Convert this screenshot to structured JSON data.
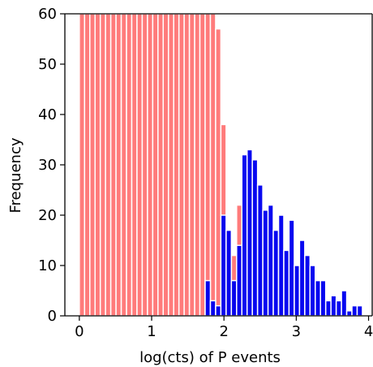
{
  "chart_data": {
    "type": "bar",
    "xlabel": "log(cts) of P events",
    "ylabel": "Frequency",
    "xlim": [
      -0.2,
      4.05
    ],
    "ylim": [
      0,
      60
    ],
    "xticks": [
      0,
      1,
      2,
      3,
      4
    ],
    "yticks": [
      0,
      10,
      20,
      30,
      40,
      50,
      60
    ],
    "legend": "none",
    "grid": false,
    "series": [
      {
        "color": "#ff7b7b",
        "bin_width": 0.0725,
        "bins": [
          {
            "x0": 0.0,
            "value": 60
          },
          {
            "x0": 0.0725,
            "value": 60
          },
          {
            "x0": 0.145,
            "value": 60
          },
          {
            "x0": 0.2175,
            "value": 60
          },
          {
            "x0": 0.29,
            "value": 60
          },
          {
            "x0": 0.3625,
            "value": 60
          },
          {
            "x0": 0.435,
            "value": 60
          },
          {
            "x0": 0.5075,
            "value": 60
          },
          {
            "x0": 0.58,
            "value": 60
          },
          {
            "x0": 0.6525,
            "value": 60
          },
          {
            "x0": 0.725,
            "value": 60
          },
          {
            "x0": 0.7975,
            "value": 60
          },
          {
            "x0": 0.87,
            "value": 60
          },
          {
            "x0": 0.9425,
            "value": 60
          },
          {
            "x0": 1.015,
            "value": 60
          },
          {
            "x0": 1.0875,
            "value": 60
          },
          {
            "x0": 1.16,
            "value": 60
          },
          {
            "x0": 1.2325,
            "value": 60
          },
          {
            "x0": 1.305,
            "value": 60
          },
          {
            "x0": 1.3775,
            "value": 60
          },
          {
            "x0": 1.45,
            "value": 60
          },
          {
            "x0": 1.5225,
            "value": 60
          },
          {
            "x0": 1.595,
            "value": 60
          },
          {
            "x0": 1.6675,
            "value": 60
          },
          {
            "x0": 1.74,
            "value": 60
          },
          {
            "x0": 1.8125,
            "value": 60
          },
          {
            "x0": 1.885,
            "value": 57
          },
          {
            "x0": 1.9575,
            "value": 38
          },
          {
            "x0": 2.03,
            "value": 17
          },
          {
            "x0": 2.1025,
            "value": 12
          },
          {
            "x0": 2.175,
            "value": 22
          }
        ]
      },
      {
        "color": "#0000f0",
        "bin_width": 0.0725,
        "bins": [
          {
            "x0": 1.74,
            "value": 7
          },
          {
            "x0": 1.8125,
            "value": 3
          },
          {
            "x0": 1.885,
            "value": 2
          },
          {
            "x0": 1.9575,
            "value": 20
          },
          {
            "x0": 2.03,
            "value": 17
          },
          {
            "x0": 2.1025,
            "value": 7
          },
          {
            "x0": 2.175,
            "value": 14
          },
          {
            "x0": 2.2475,
            "value": 32
          },
          {
            "x0": 2.32,
            "value": 33
          },
          {
            "x0": 2.3925,
            "value": 31
          },
          {
            "x0": 2.465,
            "value": 26
          },
          {
            "x0": 2.5375,
            "value": 21
          },
          {
            "x0": 2.61,
            "value": 22
          },
          {
            "x0": 2.6825,
            "value": 17
          },
          {
            "x0": 2.755,
            "value": 20
          },
          {
            "x0": 2.8275,
            "value": 13
          },
          {
            "x0": 2.9,
            "value": 19
          },
          {
            "x0": 2.9725,
            "value": 10
          },
          {
            "x0": 3.045,
            "value": 15
          },
          {
            "x0": 3.1175,
            "value": 12
          },
          {
            "x0": 3.19,
            "value": 10
          },
          {
            "x0": 3.2625,
            "value": 7
          },
          {
            "x0": 3.335,
            "value": 7
          },
          {
            "x0": 3.4075,
            "value": 3
          },
          {
            "x0": 3.48,
            "value": 4
          },
          {
            "x0": 3.5525,
            "value": 3
          },
          {
            "x0": 3.625,
            "value": 5
          },
          {
            "x0": 3.6975,
            "value": 1
          },
          {
            "x0": 3.77,
            "value": 2
          },
          {
            "x0": 3.8425,
            "value": 2
          }
        ]
      }
    ]
  }
}
